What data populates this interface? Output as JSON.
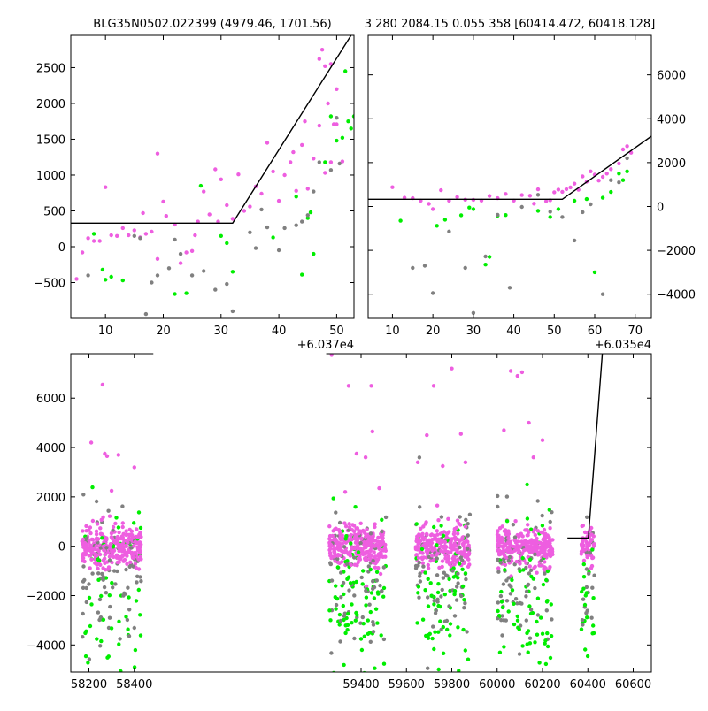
{
  "colors": {
    "magenta": "#ee5ee0",
    "green": "#00ee00",
    "gray": "#808080",
    "line": "#000000"
  },
  "chart_data": [
    {
      "type": "scatter",
      "title": "BLG35N0502.022399 (4979.46, 1701.56)",
      "x_offset_label": "+6.037e4",
      "xlim": [
        60374,
        60423
      ],
      "ylim": [
        -1000,
        2950
      ],
      "xticks": [
        10,
        20,
        30,
        40,
        50
      ],
      "xtick_labels": [
        "10",
        "20",
        "30",
        "40",
        "50"
      ],
      "yticks": [
        -500,
        0,
        500,
        1000,
        1500,
        2000,
        2500
      ],
      "ytick_labels": [
        "−500",
        "0",
        "500",
        "1000",
        "1500",
        "2000",
        "2500"
      ],
      "y_axis_side": "left",
      "model_line": [
        [
          60374,
          330
        ],
        [
          60402,
          330
        ],
        [
          60422.5,
          2950
        ]
      ],
      "series": [
        {
          "color": "magenta",
          "points": [
            [
              60375,
              -450
            ],
            [
              60376,
              -80
            ],
            [
              60377,
              120
            ],
            [
              60378,
              80
            ],
            [
              60379,
              80
            ],
            [
              60380,
              830
            ],
            [
              60381,
              160
            ],
            [
              60382,
              150
            ],
            [
              60383,
              260
            ],
            [
              60384,
              160
            ],
            [
              60385,
              230
            ],
            [
              60386,
              130
            ],
            [
              60386.5,
              470
            ],
            [
              60387,
              180
            ],
            [
              60388,
              210
            ],
            [
              60389,
              1300
            ],
            [
              60390,
              630
            ],
            [
              60390.5,
              430
            ],
            [
              60389,
              -170
            ],
            [
              60392,
              310
            ],
            [
              60393,
              -230
            ],
            [
              60394,
              -80
            ],
            [
              60395,
              -60
            ],
            [
              60395.5,
              160
            ],
            [
              60396,
              350
            ],
            [
              60397,
              770
            ],
            [
              60398,
              450
            ],
            [
              60399,
              1080
            ],
            [
              60399.5,
              350
            ],
            [
              60400,
              940
            ],
            [
              60401,
              580
            ],
            [
              60402,
              390
            ],
            [
              60403,
              1010
            ],
            [
              60404,
              500
            ],
            [
              60405,
              560
            ],
            [
              60406,
              840
            ],
            [
              60407,
              740
            ],
            [
              60408,
              1450
            ],
            [
              60409,
              1050
            ],
            [
              60410,
              640
            ],
            [
              60411,
              1000
            ],
            [
              60412,
              1180
            ],
            [
              60412.5,
              1320
            ],
            [
              60413,
              780
            ],
            [
              60414,
              1420
            ],
            [
              60414.5,
              1750
            ],
            [
              60415,
              810
            ],
            [
              60416,
              1230
            ],
            [
              60417,
              1690
            ],
            [
              60418,
              1030
            ],
            [
              60419,
              1180
            ],
            [
              60419.5,
              1710
            ],
            [
              60420,
              1710
            ],
            [
              60421,
              1190
            ],
            [
              60417,
              2620
            ],
            [
              60417.5,
              2750
            ],
            [
              60418,
              2520
            ],
            [
              60418.5,
              2000
            ],
            [
              60419,
              2550
            ],
            [
              60420,
              2200
            ]
          ]
        },
        {
          "color": "green",
          "points": [
            [
              60378,
              180
            ],
            [
              60379.5,
              -320
            ],
            [
              60380,
              -460
            ],
            [
              60381,
              -420
            ],
            [
              60383,
              -470
            ],
            [
              60392,
              -660
            ],
            [
              60394,
              -650
            ],
            [
              60396.5,
              850
            ],
            [
              60400,
              150
            ],
            [
              60401,
              50
            ],
            [
              60402,
              -350
            ],
            [
              60409,
              130
            ],
            [
              60413,
              700
            ],
            [
              60414,
              -390
            ],
            [
              60415,
              400
            ],
            [
              60415.5,
              480
            ],
            [
              60416,
              -100
            ],
            [
              60418,
              1180
            ],
            [
              60419,
              1820
            ],
            [
              60420,
              1480
            ],
            [
              60421,
              1520
            ],
            [
              60422,
              1750
            ],
            [
              60422.5,
              1650
            ],
            [
              60423,
              1820
            ],
            [
              60421.5,
              2450
            ]
          ]
        },
        {
          "color": "gray",
          "points": [
            [
              60377,
              -400
            ],
            [
              60385,
              150
            ],
            [
              60386,
              120
            ],
            [
              60387,
              -940
            ],
            [
              60388,
              -500
            ],
            [
              60389,
              -400
            ],
            [
              60391,
              -300
            ],
            [
              60392,
              100
            ],
            [
              60393,
              -100
            ],
            [
              60395,
              -400
            ],
            [
              60397,
              -340
            ],
            [
              60399,
              -600
            ],
            [
              60401,
              -520
            ],
            [
              60402,
              -900
            ],
            [
              60405,
              200
            ],
            [
              60406,
              -20
            ],
            [
              60407,
              520
            ],
            [
              60408,
              270
            ],
            [
              60410,
              -50
            ],
            [
              60411,
              260
            ],
            [
              60413,
              300
            ],
            [
              60414,
              350
            ],
            [
              60415,
              440
            ],
            [
              60416,
              770
            ],
            [
              60417,
              1180
            ],
            [
              60419,
              1070
            ],
            [
              60420,
              1800
            ],
            [
              60420.5,
              1160
            ]
          ]
        }
      ]
    },
    {
      "type": "scatter",
      "title": "3 280 2084.15 0.055 358 [60414.472, 60418.128]",
      "x_offset_label": "+6.035e4",
      "xlim": [
        60354,
        60424
      ],
      "ylim": [
        -5100,
        7800
      ],
      "xticks": [
        10,
        20,
        30,
        40,
        50,
        60,
        70
      ],
      "xtick_labels": [
        "10",
        "20",
        "30",
        "40",
        "50",
        "60",
        "70"
      ],
      "yticks": [
        -4000,
        -2000,
        0,
        2000,
        4000,
        6000
      ],
      "ytick_labels": [
        "−4000",
        "−2000",
        "0",
        "2000",
        "4000",
        "6000"
      ],
      "y_axis_side": "right",
      "model_line": [
        [
          60354,
          330
        ],
        [
          60402,
          330
        ],
        [
          60424,
          3200
        ]
      ],
      "series": [
        {
          "color": "magenta",
          "points": [
            [
              60360,
              880
            ],
            [
              60363,
              400
            ],
            [
              60365,
              380
            ],
            [
              60367,
              260
            ],
            [
              60369,
              120
            ],
            [
              60370,
              -120
            ],
            [
              60372,
              740
            ],
            [
              60374,
              260
            ],
            [
              60376,
              430
            ],
            [
              60378,
              310
            ],
            [
              60380,
              300
            ],
            [
              60382,
              270
            ],
            [
              60384,
              480
            ],
            [
              60386,
              380
            ],
            [
              60388,
              570
            ],
            [
              60390,
              270
            ],
            [
              60392,
              520
            ],
            [
              60394,
              490
            ],
            [
              60395,
              130
            ],
            [
              60396,
              780
            ],
            [
              60398,
              240
            ],
            [
              60399,
              280
            ],
            [
              60400,
              650
            ],
            [
              60401,
              770
            ],
            [
              60402,
              670
            ],
            [
              60403,
              790
            ],
            [
              60404,
              870
            ],
            [
              60405,
              1040
            ],
            [
              60406,
              760
            ],
            [
              60407,
              1370
            ],
            [
              60408,
              1130
            ],
            [
              60409,
              1600
            ],
            [
              60410,
              1450
            ],
            [
              60411,
              1180
            ],
            [
              60412,
              1350
            ],
            [
              60413,
              1500
            ],
            [
              60414,
              1700
            ],
            [
              60416,
              1960
            ],
            [
              60417,
              2600
            ],
            [
              60418,
              2750
            ],
            [
              60419,
              2450
            ]
          ]
        },
        {
          "color": "green",
          "points": [
            [
              60362,
              -650
            ],
            [
              60371,
              -880
            ],
            [
              60373,
              -600
            ],
            [
              60377,
              -400
            ],
            [
              60379,
              -50
            ],
            [
              60380,
              -120
            ],
            [
              60383,
              -2650
            ],
            [
              60384,
              -2300
            ],
            [
              60386,
              -420
            ],
            [
              60388,
              -390
            ],
            [
              60396,
              -200
            ],
            [
              60399,
              -480
            ],
            [
              60401,
              -120
            ],
            [
              60405,
              260
            ],
            [
              60408,
              340
            ],
            [
              60410,
              -3000
            ],
            [
              60412,
              400
            ],
            [
              60414,
              660
            ],
            [
              60416,
              1500
            ],
            [
              60417,
              1200
            ],
            [
              60418,
              1600
            ]
          ]
        },
        {
          "color": "gray",
          "points": [
            [
              60365,
              -2800
            ],
            [
              60368,
              -2700
            ],
            [
              60370,
              -3950
            ],
            [
              60374,
              -1140
            ],
            [
              60378,
              -2800
            ],
            [
              60380,
              -4850
            ],
            [
              60383,
              -2280
            ],
            [
              60386,
              -380
            ],
            [
              60389,
              -3700
            ],
            [
              60392,
              -20
            ],
            [
              60396,
              530
            ],
            [
              60399,
              -240
            ],
            [
              60402,
              -480
            ],
            [
              60405,
              -1550
            ],
            [
              60407,
              -260
            ],
            [
              60409,
              100
            ],
            [
              60412,
              -4000
            ],
            [
              60414,
              1200
            ],
            [
              60416,
              1100
            ],
            [
              60418,
              2200
            ]
          ]
        }
      ]
    },
    {
      "type": "scatter",
      "title": "",
      "xlim": [
        58120,
        60680
      ],
      "ylim": [
        -5100,
        7800
      ],
      "x_break": [
        58480,
        59250
      ],
      "xticks": [
        58200,
        58400,
        59400,
        59600,
        59800,
        60000,
        60200,
        60400,
        60600
      ],
      "xtick_labels": [
        "58200",
        "58400",
        "59400",
        "59600",
        "59800",
        "60000",
        "60200",
        "60400",
        "60600"
      ],
      "yticks": [
        -4000,
        -2000,
        0,
        2000,
        4000,
        6000
      ],
      "ytick_labels": [
        "−4000",
        "−2000",
        "0",
        "2000",
        "4000",
        "6000"
      ],
      "y_axis_side": "left",
      "model_line": [
        [
          60310,
          330
        ],
        [
          60402,
          330
        ],
        [
          60464,
          7800
        ]
      ],
      "seasons": [
        {
          "range": [
            58170,
            58430
          ],
          "n": 420,
          "outliers": [
            [
              58210,
              4200
            ],
            [
              58260,
              6550
            ],
            [
              58270,
              3750
            ],
            [
              58280,
              3650
            ],
            [
              58330,
              3700
            ],
            [
              58300,
              2250
            ],
            [
              58400,
              3200
            ]
          ]
        },
        {
          "range": [
            59260,
            59510
          ],
          "n": 440,
          "outliers": [
            [
              59270,
              7750
            ],
            [
              59330,
              2200
            ],
            [
              59345,
              6500
            ],
            [
              59380,
              3750
            ],
            [
              59420,
              3600
            ],
            [
              59445,
              6500
            ],
            [
              59450,
              4650
            ],
            [
              59480,
              2350
            ]
          ]
        },
        {
          "range": [
            59640,
            59880
          ],
          "n": 400,
          "outliers": [
            [
              59650,
              3400
            ],
            [
              59690,
              4500
            ],
            [
              59720,
              6500
            ],
            [
              59760,
              3250
            ],
            [
              59800,
              7200
            ],
            [
              59840,
              4550
            ],
            [
              59860,
              3400
            ]
          ]
        },
        {
          "range": [
            60000,
            60245
          ],
          "n": 420,
          "outliers": [
            [
              60030,
              4700
            ],
            [
              60060,
              7100
            ],
            [
              60090,
              6900
            ],
            [
              60110,
              7050
            ],
            [
              60140,
              5000
            ],
            [
              60160,
              3600
            ],
            [
              60200,
              4300
            ]
          ]
        },
        {
          "range": [
            60370,
            60430
          ],
          "n": 90,
          "outliers": []
        }
      ]
    }
  ]
}
